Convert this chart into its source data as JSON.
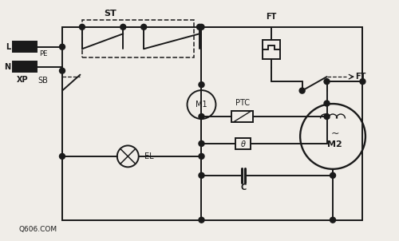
{
  "bg_color": "#f0ede8",
  "line_color": "#1a1a1a",
  "watermark": "Q606.COM",
  "lw": 1.4,
  "components": {
    "ST_label": "ST",
    "FT_top_label": "FT",
    "FT_right_label": "FT",
    "SB_label": "SB",
    "M1_label": "M1",
    "M2_label": "M2",
    "EL_label": "EL",
    "PTC_label": "PTC",
    "C_label": "C",
    "L_label": "L",
    "PE_label": "PE",
    "N_label": "N",
    "XP_label": "XP"
  }
}
